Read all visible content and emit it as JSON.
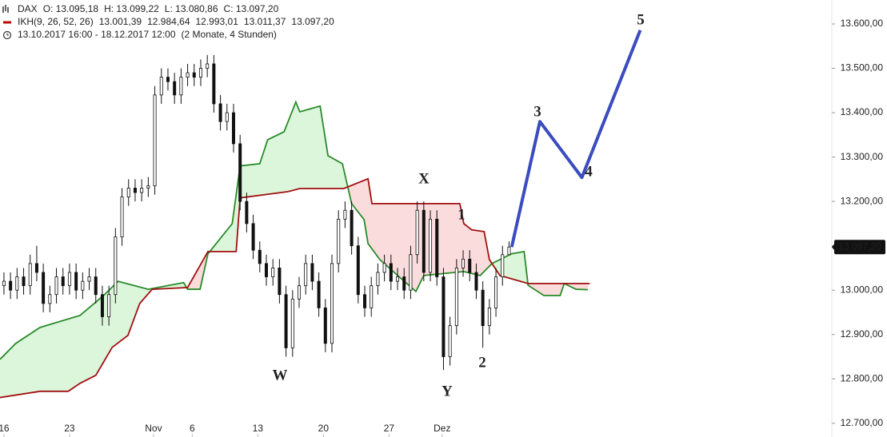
{
  "header": {
    "symbol": "DAX",
    "ohlc": [
      "O: 13.095,18",
      "H: 13.099,22",
      "L: 13.080,86",
      "C: 13.097,20"
    ],
    "ikh": [
      {
        "text": "IKH(9, 26, 52, 26)",
        "color": "#c00000"
      },
      {
        "text": "13.001,39",
        "color": "#c00000"
      },
      {
        "text": "12.984,64",
        "color": "#1f3fbf"
      },
      {
        "text": "12.993,01",
        "color": "#2a8a2a"
      },
      {
        "text": "13.011,37",
        "color": "#c00000"
      },
      {
        "text": "13.097,20",
        "color": "#222222"
      }
    ],
    "range": [
      "13.10.2017 16:00 - 18.12.2017 12:00",
      "(2 Monate, 4 Stunden)"
    ]
  },
  "chart_data": {
    "type": "candlestick",
    "xlim": [
      -0.6,
      126.2
    ],
    "xticks": [
      {
        "value": 0,
        "label": "16"
      },
      {
        "value": 10,
        "label": "23"
      },
      {
        "value": 22.8,
        "label": "Nov"
      },
      {
        "value": 28.7,
        "label": "6"
      },
      {
        "value": 38.7,
        "label": "13"
      },
      {
        "value": 48.7,
        "label": "20"
      },
      {
        "value": 58.7,
        "label": "27"
      },
      {
        "value": 66.8,
        "label": "Dez"
      }
    ],
    "ylim": [
      12669,
      13654
    ],
    "yticks": [
      {
        "value": 12700,
        "label": "12.700,00"
      },
      {
        "value": 12800,
        "label": "12.800,00"
      },
      {
        "value": 12900,
        "label": "12.900,00"
      },
      {
        "value": 13000,
        "label": "13.000,00"
      },
      {
        "value": 13100,
        "label": "13.100,00"
      },
      {
        "value": 13200,
        "label": "13.200,00"
      },
      {
        "value": 13300,
        "label": "13.300,00"
      },
      {
        "value": 13400,
        "label": "13.400,00"
      },
      {
        "value": 13500,
        "label": "13.500,00"
      },
      {
        "value": 13600,
        "label": "13.600,00"
      }
    ],
    "open": [
      13010,
      13020,
      13000,
      13030,
      13010,
      13060,
      13040,
      12970,
      12990,
      13030,
      13010,
      13040,
      13000,
      13020,
      13030,
      12990,
      12940,
      12990,
      13120,
      13210,
      13230,
      13220,
      13230,
      13235,
      13440,
      13480,
      13470,
      13440,
      13480,
      13490,
      13480,
      13500,
      13510,
      13420,
      13380,
      13400,
      13330,
      13200,
      13150,
      13090,
      13060,
      13030,
      13050,
      12990,
      12870,
      12980,
      13010,
      13060,
      13020,
      12960,
      12880,
      13060,
      13160,
      13180,
      13100,
      12990,
      12960,
      13010,
      13040,
      13060,
      13020,
      13030,
      13000,
      13080,
      13180,
      13040,
      13160,
      13030,
      12850,
      12920,
      13050,
      13070,
      13040,
      13000,
      12920,
      12960,
      13030,
      13080
    ],
    "high": [
      13040,
      13040,
      13050,
      13050,
      13080,
      13100,
      13060,
      13010,
      13050,
      13050,
      13060,
      13060,
      13040,
      13050,
      13050,
      13010,
      13010,
      13140,
      13230,
      13250,
      13250,
      13250,
      13255,
      13460,
      13500,
      13500,
      13490,
      13500,
      13510,
      13510,
      13520,
      13530,
      13530,
      13440,
      13420,
      13420,
      13350,
      13220,
      13170,
      13110,
      13080,
      13070,
      13070,
      13010,
      13000,
      13030,
      13080,
      13080,
      13040,
      12980,
      13080,
      13180,
      13200,
      13200,
      13120,
      13010,
      13030,
      13060,
      13080,
      13080,
      13050,
      13050,
      13100,
      13200,
      13200,
      13180,
      13180,
      13050,
      12940,
      13070,
      13090,
      13090,
      13060,
      13020,
      12980,
      13050,
      13100,
      13110
    ],
    "low": [
      12990,
      12980,
      12980,
      12990,
      12990,
      13020,
      12950,
      12950,
      12970,
      12990,
      12990,
      12980,
      12980,
      13000,
      12970,
      12920,
      12920,
      12970,
      13100,
      13190,
      13200,
      13200,
      13210,
      13215,
      13420,
      13450,
      13420,
      13420,
      13460,
      13460,
      13460,
      13480,
      13400,
      13360,
      13360,
      13310,
      13180,
      13130,
      13070,
      13040,
      13010,
      13010,
      12970,
      12850,
      12850,
      12960,
      12990,
      13000,
      12940,
      12860,
      12860,
      13040,
      13140,
      13080,
      12970,
      12940,
      12940,
      12990,
      13020,
      13000,
      13000,
      12980,
      12980,
      13060,
      13020,
      13020,
      13010,
      12820,
      12830,
      12900,
      13030,
      13020,
      12980,
      12870,
      12900,
      12940,
      13010,
      13081
    ],
    "close": [
      13020,
      13000,
      13030,
      13010,
      13060,
      13040,
      12970,
      12990,
      13030,
      13010,
      13040,
      13000,
      13020,
      13030,
      12990,
      12940,
      12990,
      13120,
      13210,
      13230,
      13220,
      13230,
      13235,
      13440,
      13480,
      13470,
      13440,
      13480,
      13490,
      13480,
      13500,
      13510,
      13420,
      13380,
      13400,
      13330,
      13200,
      13150,
      13090,
      13060,
      13030,
      13050,
      12990,
      12870,
      12980,
      13010,
      13060,
      13020,
      12960,
      12880,
      13060,
      13160,
      13180,
      13100,
      12990,
      12960,
      13010,
      13040,
      13060,
      13020,
      13030,
      13000,
      13080,
      13180,
      13040,
      13160,
      13030,
      12850,
      12920,
      13050,
      13070,
      13040,
      13000,
      12920,
      12960,
      13030,
      13080,
      13097.2
    ],
    "last_price": 13097.2,
    "last_price_label": "13.097,20",
    "lines": [
      {
        "color": "#2a8a2a",
        "x": [
          -0.6,
          1.8,
          5.5,
          11.6,
          15.2,
          17.4,
          22.0,
          27.4,
          28.0,
          29.9,
          31.1,
          34.8,
          36.0,
          39.0,
          40.2,
          42.7,
          44.5,
          45.1,
          48.2,
          49.4,
          51.6,
          53.0,
          54.9,
          55.5,
          57.3,
          60.4,
          62.8,
          64.0,
          70.1,
          72.6,
          74.4,
          77.4,
          79.3,
          79.9,
          82.3,
          84.8,
          85.4,
          87.2,
          89.0
        ],
        "values": [
          12844,
          12880,
          12916,
          12943,
          12988,
          13020,
          13002,
          13017,
          13002,
          13002,
          13082,
          13150,
          13280,
          13285,
          13339,
          13357,
          13424,
          13402,
          13415,
          13303,
          13285,
          13195,
          13159,
          13105,
          13069,
          13028,
          12997,
          13033,
          13042,
          13033,
          13060,
          13082,
          13087,
          13011,
          12988,
          12988,
          13015,
          13002,
          13001
        ]
      },
      {
        "color": "#a01010",
        "x": [
          -0.6,
          5.5,
          9.8,
          11.6,
          14.0,
          16.5,
          18.9,
          20.7,
          22.6,
          28.0,
          31.1,
          35.4,
          36.0,
          43.3,
          45.1,
          51.8,
          55.5,
          56.1,
          69.5,
          70.1,
          71.3,
          73.2,
          74.0,
          75.6,
          79.9,
          89.3
        ],
        "values": [
          12758,
          12772,
          12772,
          12790,
          12808,
          12871,
          12898,
          12970,
          13002,
          13006,
          13087,
          13087,
          13208,
          13222,
          13229,
          13229,
          13251,
          13195,
          13195,
          13150,
          13136,
          13132,
          13069,
          13033,
          13015,
          13015
        ]
      }
    ],
    "projection": {
      "color": "#3b4cc0",
      "x": [
        77.4,
        81.7,
        88.1,
        97.0
      ],
      "values": [
        13097.2,
        13380,
        13254,
        13586
      ]
    },
    "annotations": [
      "1",
      "2",
      "3",
      "4",
      "5",
      "W",
      "X",
      "Y"
    ]
  }
}
